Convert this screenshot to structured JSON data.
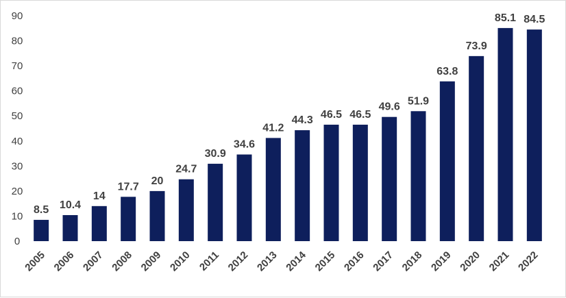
{
  "chart_data": {
    "type": "bar",
    "categories": [
      "2005",
      "2006",
      "2007",
      "2008",
      "2009",
      "2010",
      "2011",
      "2012",
      "2013",
      "2014",
      "2015",
      "2016",
      "2017",
      "2018",
      "2019",
      "2020",
      "2021",
      "2022"
    ],
    "values": [
      8.5,
      10.4,
      14,
      17.7,
      20,
      24.7,
      30.9,
      34.6,
      41.2,
      44.3,
      46.5,
      46.5,
      49.6,
      51.9,
      63.8,
      73.9,
      85.1,
      84.5
    ],
    "data_labels": [
      "8.5",
      "10.4",
      "14",
      "17.7",
      "20",
      "24.7",
      "30.9",
      "34.6",
      "41.2",
      "44.3",
      "46.5",
      "46.5",
      "49.6",
      "51.9",
      "63.8",
      "73.9",
      "85.1",
      "84.5"
    ],
    "y_ticks": [
      "0",
      "10",
      "20",
      "30",
      "40",
      "50",
      "60",
      "70",
      "80",
      "90"
    ],
    "ylim": [
      0,
      90
    ],
    "title": "",
    "xlabel": "",
    "ylabel": "",
    "grid": false,
    "legend": "none",
    "bar_color": "#0e1f5c"
  }
}
